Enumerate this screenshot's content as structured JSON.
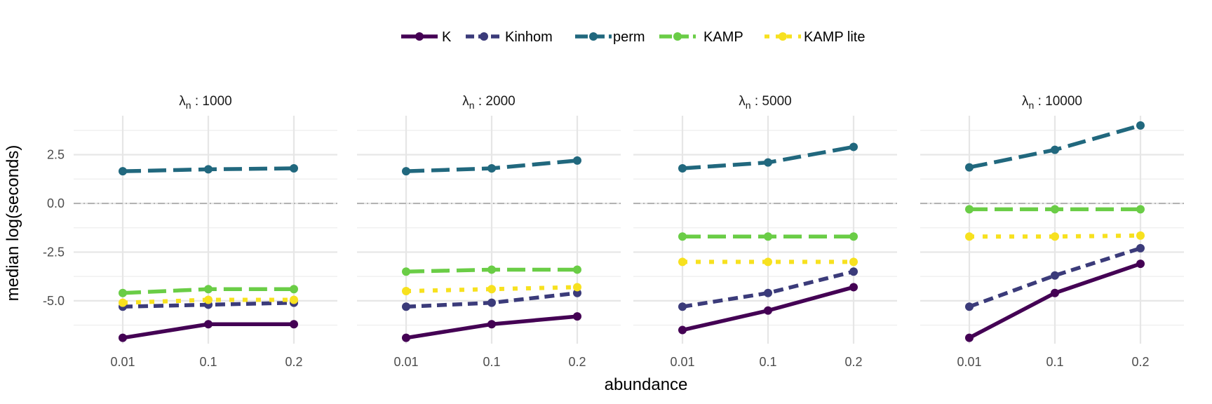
{
  "chart_data": {
    "type": "line",
    "xlabel": "abundance",
    "ylabel": "median log(seconds)",
    "x_categories": [
      "0.01",
      "0.1",
      "0.2"
    ],
    "y_ticks": [
      2.5,
      0.0,
      -2.5,
      -5.0
    ],
    "y_tick_labels": [
      "2.5",
      "0.0",
      "-2.5",
      "-5.0"
    ],
    "ylim": [
      -7.2,
      4.5
    ],
    "reference_line": 0.0,
    "legend": [
      "K",
      "Kinhom",
      "perm",
      "KAMP",
      "KAMP lite"
    ],
    "series_styles": {
      "K": {
        "color": "#440154",
        "dash": "solid"
      },
      "Kinhom": {
        "color": "#3b3b7a",
        "dash": "dashed"
      },
      "perm": {
        "color": "#21687e",
        "dash": "longdash"
      },
      "KAMP": {
        "color": "#6acd46",
        "dash": "longdash"
      },
      "KAMP lite": {
        "color": "#f7e11f",
        "dash": "dotted"
      }
    },
    "panels": [
      {
        "strip_symbol": "λ",
        "strip_subscript": "n",
        "strip_value": "1000",
        "series": [
          {
            "name": "K",
            "values": [
              -6.9,
              -6.2,
              -6.2
            ]
          },
          {
            "name": "Kinhom",
            "values": [
              -5.3,
              -5.2,
              -5.1
            ]
          },
          {
            "name": "perm",
            "values": [
              1.65,
              1.75,
              1.8
            ]
          },
          {
            "name": "KAMP",
            "values": [
              -4.6,
              -4.4,
              -4.4
            ]
          },
          {
            "name": "KAMP lite",
            "values": [
              -5.1,
              -4.95,
              -4.95
            ]
          }
        ]
      },
      {
        "strip_symbol": "λ",
        "strip_subscript": "n",
        "strip_value": "2000",
        "series": [
          {
            "name": "K",
            "values": [
              -6.9,
              -6.2,
              -5.8
            ]
          },
          {
            "name": "Kinhom",
            "values": [
              -5.3,
              -5.1,
              -4.6
            ]
          },
          {
            "name": "perm",
            "values": [
              1.65,
              1.8,
              2.2
            ]
          },
          {
            "name": "KAMP",
            "values": [
              -3.5,
              -3.4,
              -3.4
            ]
          },
          {
            "name": "KAMP lite",
            "values": [
              -4.5,
              -4.4,
              -4.3
            ]
          }
        ]
      },
      {
        "strip_symbol": "λ",
        "strip_subscript": "n",
        "strip_value": "5000",
        "series": [
          {
            "name": "K",
            "values": [
              -6.5,
              -5.5,
              -4.3
            ]
          },
          {
            "name": "Kinhom",
            "values": [
              -5.3,
              -4.6,
              -3.5
            ]
          },
          {
            "name": "perm",
            "values": [
              1.8,
              2.1,
              2.9
            ]
          },
          {
            "name": "KAMP",
            "values": [
              -1.7,
              -1.7,
              -1.7
            ]
          },
          {
            "name": "KAMP lite",
            "values": [
              -3.0,
              -3.0,
              -3.0
            ]
          }
        ]
      },
      {
        "strip_symbol": "λ",
        "strip_subscript": "n",
        "strip_value": "10000",
        "series": [
          {
            "name": "K",
            "values": [
              -6.9,
              -4.6,
              -3.1
            ]
          },
          {
            "name": "Kinhom",
            "values": [
              -5.3,
              -3.7,
              -2.3
            ]
          },
          {
            "name": "perm",
            "values": [
              1.85,
              2.75,
              4.0
            ]
          },
          {
            "name": "KAMP",
            "values": [
              -0.3,
              -0.3,
              -0.3
            ]
          },
          {
            "name": "KAMP lite",
            "values": [
              -1.7,
              -1.7,
              -1.65
            ]
          }
        ]
      }
    ]
  }
}
